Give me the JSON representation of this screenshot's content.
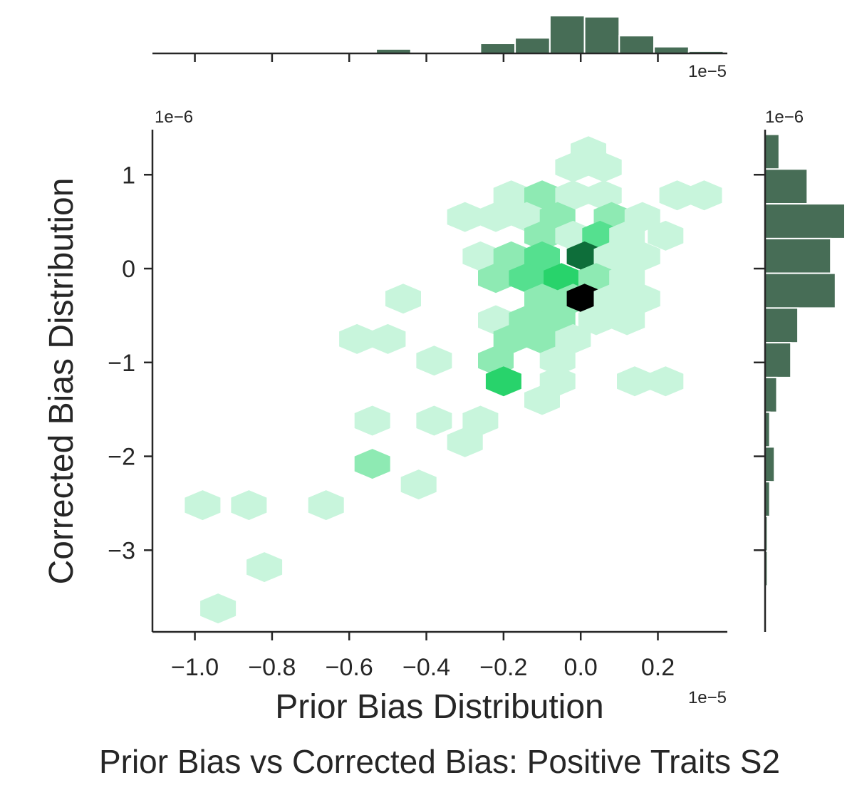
{
  "chart_data": {
    "type": "hexbin_jointplot",
    "title": "Prior Bias vs Corrected Bias: Positive Traits S2",
    "xlabel": "Prior Bias Distribution",
    "ylabel": "Corrected Bias Distribution",
    "x_offset_label": "1e−5",
    "y_offset_label": "1e−6",
    "x_scale": 1e-05,
    "y_scale": 1e-06,
    "xlim": [
      -1.11,
      0.38
    ],
    "ylim": [
      -3.87,
      1.48
    ],
    "x_ticks": [
      -1.0,
      -0.8,
      -0.6,
      -0.4,
      -0.2,
      0.0,
      0.2
    ],
    "x_tick_labels": [
      "−1.0",
      "−0.8",
      "−0.6",
      "−0.4",
      "−0.2",
      "0.0",
      "0.2"
    ],
    "y_ticks": [
      1,
      0,
      -1,
      -2,
      -3
    ],
    "y_tick_labels": [
      "1",
      "0",
      "−1",
      "−2",
      "−3"
    ],
    "hex_color_scale": [
      "#c8f5dc",
      "#8eeab3",
      "#55e08f",
      "#28d36b",
      "#0e6e3a",
      "#000000"
    ],
    "hexbins": [
      {
        "x": 0.02,
        "y": 1.25,
        "level": 0
      },
      {
        "x": -0.02,
        "y": 1.08,
        "level": 0
      },
      {
        "x": 0.06,
        "y": 1.08,
        "level": 0
      },
      {
        "x": -0.18,
        "y": 0.78,
        "level": 0
      },
      {
        "x": -0.1,
        "y": 0.78,
        "level": 1
      },
      {
        "x": -0.02,
        "y": 0.78,
        "level": 0
      },
      {
        "x": 0.06,
        "y": 0.78,
        "level": 0
      },
      {
        "x": 0.25,
        "y": 0.78,
        "level": 0
      },
      {
        "x": 0.32,
        "y": 0.78,
        "level": 0
      },
      {
        "x": -0.3,
        "y": 0.55,
        "level": 0
      },
      {
        "x": -0.22,
        "y": 0.55,
        "level": 0
      },
      {
        "x": -0.14,
        "y": 0.55,
        "level": 0
      },
      {
        "x": -0.06,
        "y": 0.55,
        "level": 1
      },
      {
        "x": 0.08,
        "y": 0.55,
        "level": 1
      },
      {
        "x": 0.16,
        "y": 0.55,
        "level": 0
      },
      {
        "x": -0.1,
        "y": 0.35,
        "level": 1
      },
      {
        "x": -0.02,
        "y": 0.35,
        "level": 0
      },
      {
        "x": 0.05,
        "y": 0.35,
        "level": 2
      },
      {
        "x": 0.12,
        "y": 0.35,
        "level": 0
      },
      {
        "x": 0.22,
        "y": 0.35,
        "level": 0
      },
      {
        "x": -0.26,
        "y": 0.13,
        "level": 0
      },
      {
        "x": -0.18,
        "y": 0.13,
        "level": 1
      },
      {
        "x": -0.1,
        "y": 0.13,
        "level": 2
      },
      {
        "x": 0.01,
        "y": 0.13,
        "level": 4
      },
      {
        "x": 0.08,
        "y": 0.13,
        "level": 0
      },
      {
        "x": 0.16,
        "y": 0.13,
        "level": 0
      },
      {
        "x": -0.22,
        "y": -0.1,
        "level": 1
      },
      {
        "x": -0.14,
        "y": -0.1,
        "level": 2
      },
      {
        "x": -0.05,
        "y": -0.1,
        "level": 3
      },
      {
        "x": 0.04,
        "y": -0.1,
        "level": 1
      },
      {
        "x": 0.12,
        "y": -0.1,
        "level": 0
      },
      {
        "x": -0.1,
        "y": -0.32,
        "level": 1
      },
      {
        "x": -0.02,
        "y": -0.32,
        "level": 1
      },
      {
        "x": 0.01,
        "y": -0.32,
        "level": 5
      },
      {
        "x": 0.08,
        "y": -0.32,
        "level": 0
      },
      {
        "x": 0.16,
        "y": -0.32,
        "level": 0
      },
      {
        "x": -0.46,
        "y": -0.32,
        "level": 0
      },
      {
        "x": -0.22,
        "y": -0.55,
        "level": 0
      },
      {
        "x": -0.14,
        "y": -0.55,
        "level": 1
      },
      {
        "x": -0.06,
        "y": -0.55,
        "level": 1
      },
      {
        "x": 0.04,
        "y": -0.55,
        "level": 0
      },
      {
        "x": 0.12,
        "y": -0.55,
        "level": 0
      },
      {
        "x": -0.58,
        "y": -0.75,
        "level": 0
      },
      {
        "x": -0.5,
        "y": -0.75,
        "level": 0
      },
      {
        "x": -0.18,
        "y": -0.75,
        "level": 1
      },
      {
        "x": -0.1,
        "y": -0.75,
        "level": 1
      },
      {
        "x": -0.02,
        "y": -0.75,
        "level": 0
      },
      {
        "x": -0.38,
        "y": -0.98,
        "level": 0
      },
      {
        "x": -0.22,
        "y": -0.98,
        "level": 1
      },
      {
        "x": -0.06,
        "y": -0.98,
        "level": 0
      },
      {
        "x": -0.2,
        "y": -1.2,
        "level": 3
      },
      {
        "x": -0.06,
        "y": -1.2,
        "level": 0
      },
      {
        "x": 0.14,
        "y": -1.2,
        "level": 0
      },
      {
        "x": 0.22,
        "y": -1.2,
        "level": 0
      },
      {
        "x": -0.1,
        "y": -1.4,
        "level": 0
      },
      {
        "x": -0.54,
        "y": -1.62,
        "level": 0
      },
      {
        "x": -0.38,
        "y": -1.62,
        "level": 0
      },
      {
        "x": -0.26,
        "y": -1.62,
        "level": 0
      },
      {
        "x": -0.3,
        "y": -1.85,
        "level": 0
      },
      {
        "x": -0.54,
        "y": -2.08,
        "level": 1
      },
      {
        "x": -0.42,
        "y": -2.3,
        "level": 0
      },
      {
        "x": -0.98,
        "y": -2.52,
        "level": 0
      },
      {
        "x": -0.86,
        "y": -2.52,
        "level": 0
      },
      {
        "x": -0.66,
        "y": -2.52,
        "level": 0
      },
      {
        "x": -0.82,
        "y": -3.18,
        "level": 0
      },
      {
        "x": -0.94,
        "y": -3.62,
        "level": 0
      }
    ],
    "x_marginal_histogram": {
      "bin_width": 0.09,
      "bins": [
        {
          "start": -0.98,
          "count": 1
        },
        {
          "start": -0.62,
          "count": 1
        },
        {
          "start": -0.53,
          "count": 4
        },
        {
          "start": -0.44,
          "count": 1
        },
        {
          "start": -0.35,
          "count": 1
        },
        {
          "start": -0.26,
          "count": 9
        },
        {
          "start": -0.17,
          "count": 14
        },
        {
          "start": -0.08,
          "count": 34
        },
        {
          "start": 0.01,
          "count": 33
        },
        {
          "start": 0.1,
          "count": 16
        },
        {
          "start": 0.19,
          "count": 6
        },
        {
          "start": 0.28,
          "count": 2
        }
      ]
    },
    "y_marginal_histogram": {
      "bin_width": 0.37,
      "bins": [
        {
          "start": 1.06,
          "count": 6
        },
        {
          "start": 0.69,
          "count": 18
        },
        {
          "start": 0.32,
          "count": 34
        },
        {
          "start": -0.05,
          "count": 28
        },
        {
          "start": -0.42,
          "count": 30
        },
        {
          "start": -0.79,
          "count": 14
        },
        {
          "start": -1.16,
          "count": 11
        },
        {
          "start": -1.53,
          "count": 5
        },
        {
          "start": -1.9,
          "count": 2
        },
        {
          "start": -2.27,
          "count": 4
        },
        {
          "start": -2.64,
          "count": 2
        },
        {
          "start": -3.01,
          "count": 1
        },
        {
          "start": -3.38,
          "count": 1
        }
      ]
    },
    "marginal_color": "#476d56"
  }
}
